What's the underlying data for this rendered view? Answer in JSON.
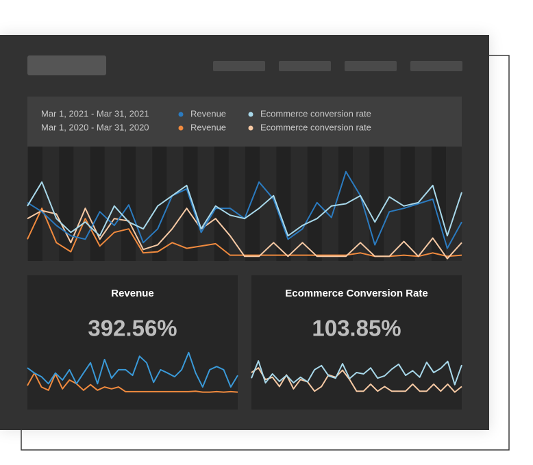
{
  "chart_data": [
    {
      "type": "line",
      "periods": [
        "Mar 1, 2021 - Mar 31, 2021",
        "Mar 1, 2020 - Mar 31, 2020"
      ],
      "ylim": [
        0,
        100
      ],
      "series": [
        {
          "name": "Revenue",
          "color": "#2b7bc0",
          "values": [
            51,
            43,
            31,
            22,
            19,
            43,
            31,
            49,
            16,
            28,
            57,
            63,
            25,
            46,
            46,
            37,
            69,
            54,
            19,
            28,
            51,
            38,
            78,
            57,
            14,
            43,
            46,
            50,
            54,
            11,
            34
          ]
        },
        {
          "name": "Ecommerce conversion rate",
          "color": "#a8d8ea",
          "values": [
            48,
            69,
            37,
            25,
            34,
            22,
            48,
            34,
            28,
            48,
            57,
            66,
            28,
            48,
            40,
            37,
            46,
            57,
            22,
            31,
            37,
            48,
            50,
            57,
            34,
            56,
            48,
            51,
            66,
            22,
            60
          ]
        },
        {
          "name": "Revenue",
          "color": "#f08a3e",
          "values": [
            19,
            46,
            16,
            8,
            37,
            13,
            25,
            28,
            7,
            8,
            16,
            11,
            13,
            15,
            5,
            5,
            5,
            5,
            5,
            5,
            5,
            5,
            5,
            7,
            4,
            4,
            5,
            4,
            7,
            4,
            5
          ]
        },
        {
          "name": "Ecommerce conversion rate",
          "color": "#f6c9a4",
          "values": [
            37,
            44,
            41,
            16,
            46,
            19,
            37,
            35,
            10,
            14,
            28,
            46,
            28,
            37,
            22,
            4,
            4,
            16,
            4,
            16,
            4,
            4,
            4,
            16,
            4,
            4,
            17,
            4,
            20,
            2,
            16
          ]
        }
      ]
    },
    {
      "type": "line",
      "title": "Revenue",
      "kpi": "392.56%",
      "ylim": [
        0,
        100
      ],
      "series": [
        {
          "color": "#3a9ad9",
          "values": [
            60,
            49,
            41,
            26,
            49,
            34,
            56,
            26,
            49,
            71,
            26,
            78,
            38,
            56,
            56,
            44,
            85,
            71,
            29,
            56,
            49,
            41,
            56,
            93,
            49,
            19,
            56,
            63,
            56,
            19,
            44
          ]
        },
        {
          "color": "#f08a3e",
          "values": [
            22,
            49,
            19,
            12,
            47,
            15,
            34,
            26,
            12,
            24,
            12,
            19,
            15,
            19,
            9,
            9,
            9,
            9,
            9,
            9,
            9,
            9,
            9,
            9,
            10,
            8,
            8,
            9,
            8,
            9,
            8
          ]
        }
      ]
    },
    {
      "type": "line",
      "title": "Ecommerce Conversion Rate",
      "kpi": "103.85%",
      "ylim": [
        0,
        100
      ],
      "series": [
        {
          "color": "#a8d8ea",
          "values": [
            38,
            75,
            28,
            47,
            31,
            44,
            28,
            40,
            30,
            56,
            65,
            43,
            38,
            69,
            37,
            50,
            47,
            60,
            38,
            43,
            57,
            68,
            44,
            54,
            40,
            72,
            50,
            59,
            74,
            24,
            66
          ]
        },
        {
          "color": "#f6c9a4",
          "values": [
            50,
            60,
            35,
            40,
            20,
            45,
            15,
            35,
            30,
            10,
            20,
            45,
            40,
            55,
            35,
            10,
            10,
            25,
            10,
            20,
            10,
            10,
            10,
            25,
            10,
            10,
            25,
            10,
            25,
            8,
            20
          ]
        }
      ]
    }
  ]
}
